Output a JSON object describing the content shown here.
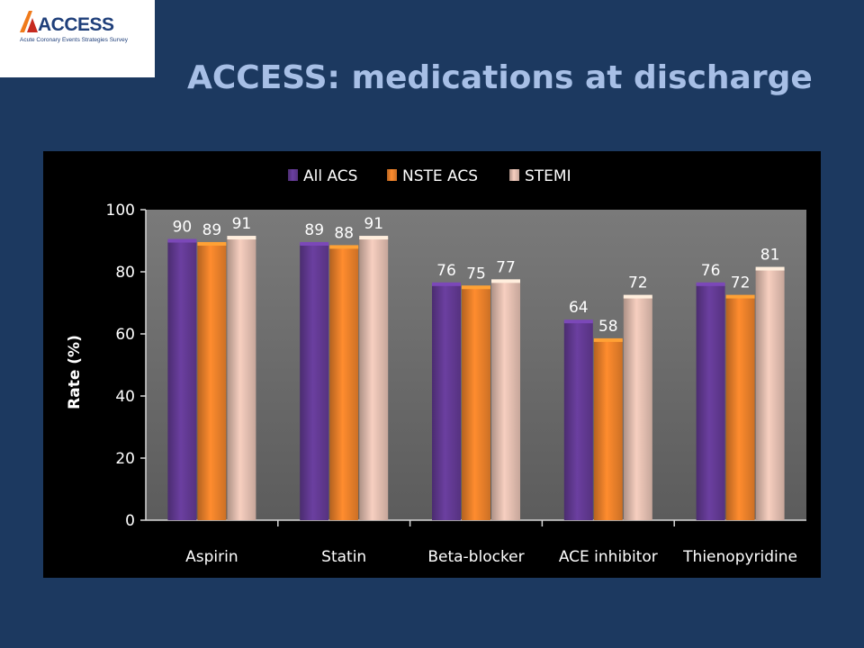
{
  "logo": {
    "name": "ACCESS",
    "subtitle": "Acute Coronary Events Strategies Survey"
  },
  "page_title": "ACCESS: medications at discharge",
  "chart_data": {
    "type": "bar",
    "title": "",
    "xlabel": "",
    "ylabel": "Rate (%)",
    "ylim": [
      0,
      100
    ],
    "yticks": [
      0,
      20,
      40,
      60,
      80,
      100
    ],
    "legend": "top",
    "grid": false,
    "categories": [
      "Aspirin",
      "Statin",
      "Beta-blocker",
      "ACE inhibitor",
      "Thienopyridine"
    ],
    "series": [
      {
        "name": "All ACS",
        "values": [
          90,
          89,
          76,
          64,
          76
        ],
        "color": "#6b3fa0"
      },
      {
        "name": "NSTE ACS",
        "values": [
          89,
          88,
          75,
          58,
          72
        ],
        "color": "#ff8c2e"
      },
      {
        "name": "STEMI",
        "values": [
          91,
          91,
          77,
          72,
          81
        ],
        "color": "#f7cfc0"
      }
    ],
    "data_labels": true
  }
}
